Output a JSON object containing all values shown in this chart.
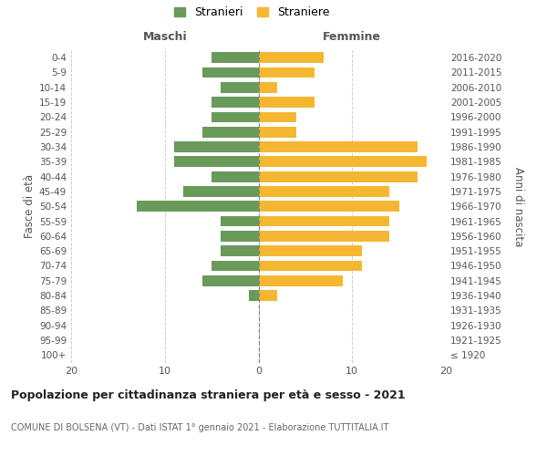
{
  "age_groups": [
    "100+",
    "95-99",
    "90-94",
    "85-89",
    "80-84",
    "75-79",
    "70-74",
    "65-69",
    "60-64",
    "55-59",
    "50-54",
    "45-49",
    "40-44",
    "35-39",
    "30-34",
    "25-29",
    "20-24",
    "15-19",
    "10-14",
    "5-9",
    "0-4"
  ],
  "birth_years": [
    "≤ 1920",
    "1921-1925",
    "1926-1930",
    "1931-1935",
    "1936-1940",
    "1941-1945",
    "1946-1950",
    "1951-1955",
    "1956-1960",
    "1961-1965",
    "1966-1970",
    "1971-1975",
    "1976-1980",
    "1981-1985",
    "1986-1990",
    "1991-1995",
    "1996-2000",
    "2001-2005",
    "2006-2010",
    "2011-2015",
    "2016-2020"
  ],
  "maschi": [
    0,
    0,
    0,
    0,
    1,
    6,
    5,
    4,
    4,
    4,
    13,
    8,
    5,
    9,
    9,
    6,
    5,
    5,
    4,
    6,
    5
  ],
  "femmine": [
    0,
    0,
    0,
    0,
    2,
    9,
    11,
    11,
    14,
    14,
    15,
    14,
    17,
    18,
    17,
    4,
    4,
    6,
    2,
    6,
    7
  ],
  "color_maschi": "#6a9a5a",
  "color_femmine": "#f5b731",
  "title": "Popolazione per cittadinanza straniera per età e sesso - 2021",
  "subtitle": "COMUNE DI BOLSENA (VT) - Dati ISTAT 1° gennaio 2021 - Elaborazione TUTTITALIA.IT",
  "ylabel_left": "Fasce di età",
  "ylabel_right": "Anni di nascita",
  "header_left": "Maschi",
  "header_right": "Femmine",
  "legend_maschi": "Stranieri",
  "legend_femmine": "Straniere",
  "xlim": 20,
  "background_color": "#ffffff",
  "grid_color": "#cccccc"
}
